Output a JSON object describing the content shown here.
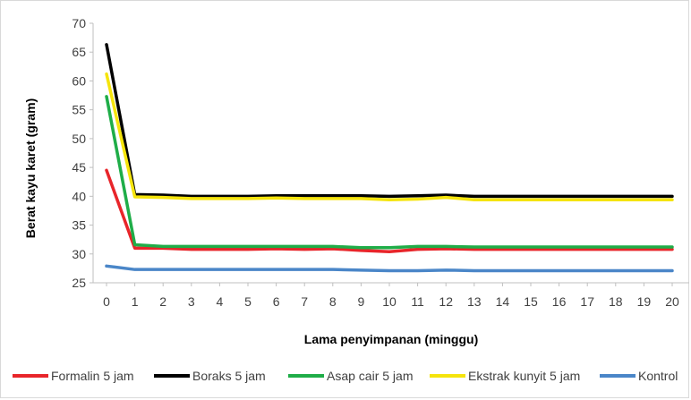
{
  "chart_data": {
    "type": "line",
    "title": "",
    "xlabel": "Lama penyimpanan (minggu)",
    "ylabel": "Berat kayu karet (gram)",
    "ylim": [
      25,
      70
    ],
    "yticks": [
      "25",
      "30",
      "35",
      "40",
      "45",
      "50",
      "55",
      "60",
      "65",
      "70"
    ],
    "x": [
      0,
      1,
      2,
      3,
      4,
      5,
      6,
      7,
      8,
      9,
      10,
      11,
      12,
      13,
      14,
      15,
      16,
      17,
      18,
      19,
      20
    ],
    "xticks": [
      "0",
      "1",
      "2",
      "3",
      "4",
      "5",
      "6",
      "7",
      "8",
      "9",
      "10",
      "11",
      "12",
      "13",
      "14",
      "15",
      "16",
      "17",
      "18",
      "19",
      "20"
    ],
    "grid": false,
    "legend": "bottom",
    "series": [
      {
        "name": "Formalin 5 jam",
        "color": "#e8252a",
        "values": [
          44.5,
          31.0,
          31.0,
          30.8,
          30.8,
          30.8,
          30.9,
          30.8,
          30.9,
          30.6,
          30.4,
          30.8,
          30.9,
          30.8,
          30.8,
          30.8,
          30.8,
          30.8,
          30.8,
          30.8,
          30.8
        ]
      },
      {
        "name": "Boraks 5 jam",
        "color": "#000000",
        "values": [
          66.3,
          40.3,
          40.2,
          40.0,
          40.0,
          40.0,
          40.1,
          40.1,
          40.1,
          40.1,
          40.0,
          40.1,
          40.2,
          40.0,
          40.0,
          40.0,
          40.0,
          40.0,
          40.0,
          40.0,
          40.0
        ]
      },
      {
        "name": "Asap cair 5 jam",
        "color": "#1fad48",
        "values": [
          57.3,
          31.6,
          31.3,
          31.3,
          31.3,
          31.3,
          31.3,
          31.3,
          31.3,
          31.1,
          31.1,
          31.3,
          31.3,
          31.2,
          31.2,
          31.2,
          31.2,
          31.2,
          31.2,
          31.2,
          31.2
        ]
      },
      {
        "name": "Ekstrak kunyit 5 jam",
        "color": "#f5e40c",
        "values": [
          61.2,
          39.9,
          39.8,
          39.6,
          39.6,
          39.6,
          39.7,
          39.6,
          39.6,
          39.6,
          39.4,
          39.5,
          39.8,
          39.4,
          39.4,
          39.4,
          39.4,
          39.4,
          39.4,
          39.4,
          39.4
        ]
      },
      {
        "name": "Kontrol",
        "color": "#4a86c8",
        "values": [
          27.9,
          27.3,
          27.3,
          27.3,
          27.3,
          27.3,
          27.3,
          27.3,
          27.3,
          27.2,
          27.1,
          27.1,
          27.2,
          27.1,
          27.1,
          27.1,
          27.1,
          27.1,
          27.1,
          27.1,
          27.1
        ]
      }
    ]
  }
}
